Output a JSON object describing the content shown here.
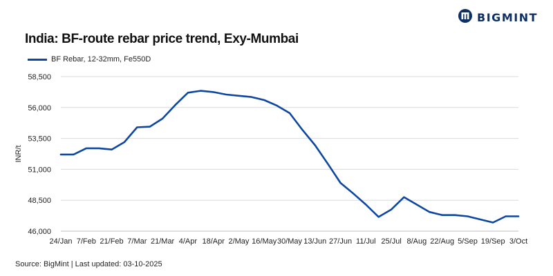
{
  "header": {
    "logo_text": "BIGMINT",
    "logo_icon": "bigmint-logo-icon"
  },
  "footer": {
    "source": "Source: BigMint | Last updated: 03-10-2025"
  },
  "colors": {
    "series": "#0d47a1",
    "grid": "#d9d9d9",
    "logo": "#0e2f63"
  },
  "chart_data": {
    "type": "line",
    "title": "India: BF-route rebar price trend, Exy-Mumbai",
    "xlabel": "",
    "ylabel": "INR/t",
    "ylim": [
      46000,
      58500
    ],
    "yticks": [
      46000,
      48500,
      51000,
      53500,
      56000,
      58500
    ],
    "ytick_labels": [
      "46,000",
      "48,500",
      "51,000",
      "53,500",
      "56,000",
      "58,500"
    ],
    "grid": true,
    "legend_position": "top-left",
    "x_tick_labels": [
      "24/Jan",
      "7/Feb",
      "21/Feb",
      "7/Mar",
      "21/Mar",
      "4/Apr",
      "18/Apr",
      "2/May",
      "16/May",
      "30/May",
      "13/Jun",
      "27/Jun",
      "11/Jul",
      "25/Jul",
      "8/Aug",
      "22/Aug",
      "5/Sep",
      "19/Sep",
      "3/Oct"
    ],
    "series": [
      {
        "name": "BF Rebar, 12-32mm, Fe550D",
        "x": [
          0,
          0.5,
          1,
          1.5,
          2,
          2.5,
          3,
          3.5,
          4,
          4.5,
          5,
          5.5,
          6,
          6.5,
          7,
          7.5,
          8,
          8.5,
          9,
          9.5,
          10,
          10.5,
          11,
          11.5,
          12,
          12.5,
          13,
          13.5,
          14,
          14.5,
          15,
          15.5,
          16,
          16.5,
          17,
          17.5,
          18
        ],
        "values": [
          52200,
          52200,
          52700,
          52700,
          52600,
          53200,
          54400,
          54450,
          55100,
          56200,
          57200,
          57350,
          57250,
          57050,
          56950,
          56850,
          56600,
          56150,
          55550,
          54200,
          52950,
          51450,
          49900,
          49050,
          48150,
          47150,
          47750,
          48750,
          48150,
          47550,
          47300,
          47300,
          47200,
          46950,
          46700,
          47200,
          47200
        ]
      }
    ]
  }
}
